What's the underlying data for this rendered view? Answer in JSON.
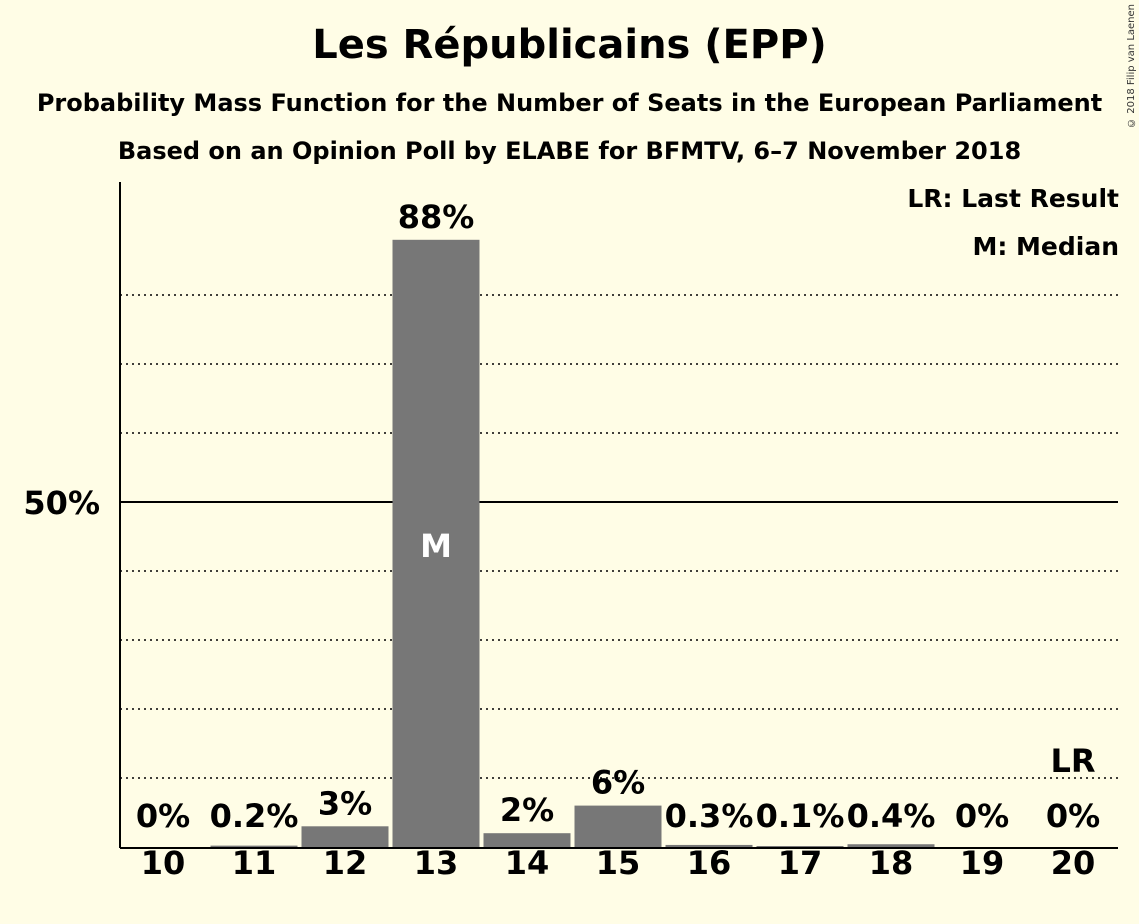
{
  "title": "Les Républicains (EPP)",
  "subtitle_1": "Probability Mass Function for the Number of Seats in the European Parliament",
  "subtitle_2": "Based on an Opinion Poll by ELABE for BFMTV, 6–7 November 2018",
  "legend": {
    "last_result": "LR: Last Result",
    "median": "M: Median"
  },
  "copyright": "© 2018 Filip van Laenen",
  "colors": {
    "background": "#fffde6",
    "bar": "#777777",
    "median_text": "#ffffff"
  },
  "chart_data": {
    "type": "bar",
    "categories": [
      "10",
      "11",
      "12",
      "13",
      "14",
      "15",
      "16",
      "17",
      "18",
      "19",
      "20"
    ],
    "values": [
      0,
      0.2,
      3,
      88,
      2,
      6,
      0.3,
      0.1,
      0.4,
      0,
      0
    ],
    "labels": [
      "0%",
      "0.2%",
      "3%",
      "88%",
      "2%",
      "6%",
      "0.3%",
      "0.1%",
      "0.4%",
      "0%",
      "0%"
    ],
    "median_category": "13",
    "median_marker": "M",
    "last_result_category": "20",
    "last_result_marker": "LR",
    "ylim": [
      0,
      95
    ],
    "ytick_label": "50%",
    "ytick_value": 50,
    "gridlines": [
      10,
      20,
      30,
      40,
      60,
      70,
      80
    ]
  }
}
